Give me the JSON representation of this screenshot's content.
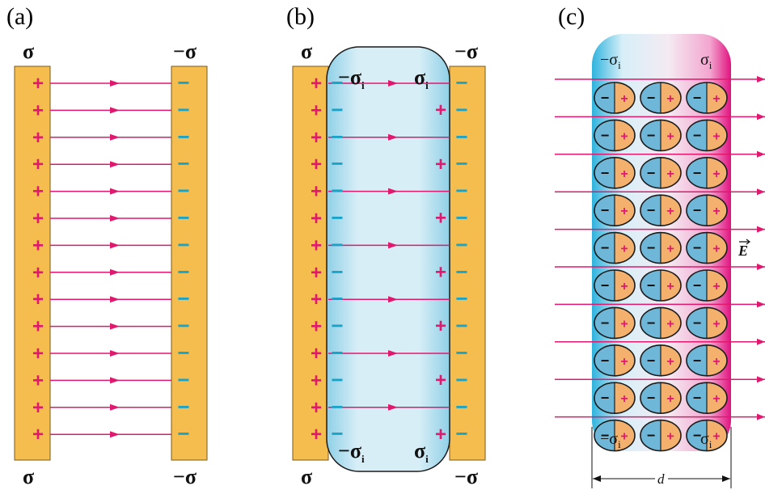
{
  "panels": {
    "a": {
      "label": "(a)",
      "top_left": "σ",
      "top_right": "−σ",
      "bottom_left": "σ",
      "bottom_right": "−σ",
      "plate_color": "#f5bd4d",
      "field_color": "#e0196e"
    },
    "b": {
      "label": "(b)",
      "top_left": "σ",
      "top_right": "−σ",
      "bottom_left": "σ",
      "bottom_right": "−σ",
      "inner_top_left": "−σ",
      "inner_top_right": "σ",
      "inner_bottom_left": "−σ",
      "inner_bottom_right": "σ",
      "inner_subscript": "i",
      "dielectric_color": "#a8dcec"
    },
    "c": {
      "label": "(c)",
      "inner_top_left": "−σ",
      "inner_top_right": "σ",
      "inner_bottom_left": "−σ",
      "inner_bottom_right": "σ",
      "inner_subscript": "i",
      "field_label": "E",
      "width_label": "d",
      "molecule_left_color": "#6fb7d8",
      "molecule_right_color": "#f4b16d"
    }
  },
  "symbols": {
    "plus": "+",
    "minus": "−"
  }
}
